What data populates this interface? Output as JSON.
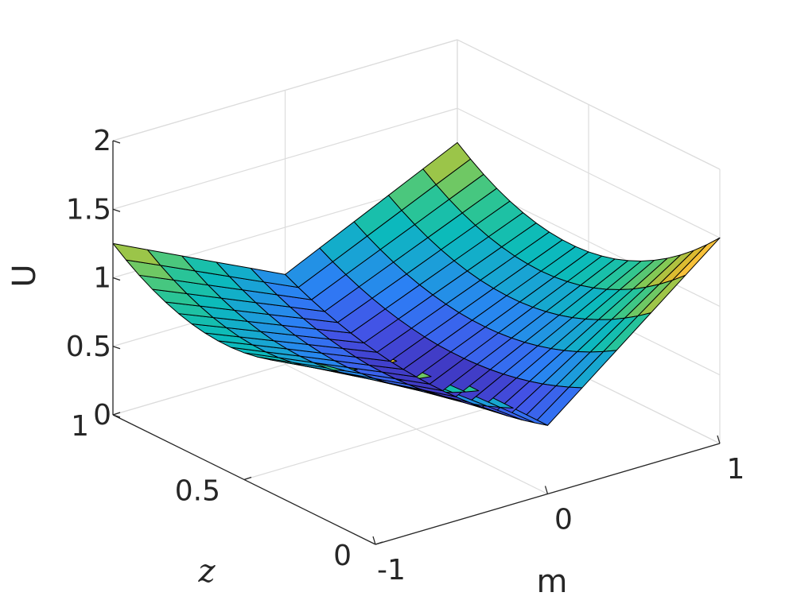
{
  "chart_data": {
    "type": "surface",
    "title": "",
    "xlabel": "m",
    "ylabel": "z",
    "zlabel": "U",
    "x_ticks": [
      "-1",
      "0",
      "1"
    ],
    "y_ticks": [
      "0",
      "0.5",
      "1"
    ],
    "z_ticks": [
      "0",
      "0.5",
      "1",
      "1.5",
      "2"
    ],
    "xlim": [
      -1,
      1
    ],
    "ylim": [
      0,
      1
    ],
    "zlim": [
      0,
      2
    ],
    "grid": true,
    "colormap": "parula",
    "colormap_stops": [
      "#3e26a8",
      "#4353e6",
      "#2c7ff6",
      "#1aa2d6",
      "#0bbbbb",
      "#2fc690",
      "#88c952",
      "#d6ba2f",
      "#fdc23c",
      "#f9f622"
    ],
    "mesh": {
      "m_points": 11,
      "z_points": 21
    },
    "m": [
      -1,
      -0.8,
      -0.6,
      -0.4,
      -0.2,
      0,
      0.2,
      0.4,
      0.6,
      0.8,
      1
    ],
    "z": [
      0,
      0.05,
      0.1,
      0.15,
      0.2,
      0.25,
      0.3,
      0.35,
      0.4,
      0.45,
      0.5,
      0.55,
      0.6,
      0.65,
      0.7,
      0.75,
      0.8,
      0.85,
      0.9,
      0.95,
      1
    ],
    "U": [
      [
        1.5,
        1.402,
        1.313,
        1.233,
        1.162,
        1.1,
        1.047,
        1.003,
        0.968,
        0.942,
        0.925,
        0.917,
        0.918,
        0.928,
        0.947,
        0.975,
        1.012,
        1.058,
        1.113,
        1.177,
        1.25
      ],
      [
        1.3,
        1.216,
        1.14,
        1.072,
        1.011,
        0.959,
        0.914,
        0.878,
        0.849,
        0.829,
        0.816,
        0.811,
        0.815,
        0.826,
        0.846,
        0.873,
        0.909,
        0.952,
        1.004,
        1.064,
        1.131
      ],
      [
        1.1,
        1.03,
        0.967,
        0.91,
        0.861,
        0.818,
        0.782,
        0.753,
        0.731,
        0.716,
        0.707,
        0.706,
        0.712,
        0.724,
        0.744,
        0.771,
        0.805,
        0.846,
        0.894,
        0.95,
        1.012
      ],
      [
        0.9,
        0.844,
        0.793,
        0.749,
        0.71,
        0.677,
        0.65,
        0.628,
        0.612,
        0.602,
        0.598,
        0.6,
        0.608,
        0.623,
        0.643,
        0.669,
        0.701,
        0.74,
        0.785,
        0.836,
        0.893
      ],
      [
        0.7,
        0.658,
        0.62,
        0.587,
        0.559,
        0.536,
        0.517,
        0.503,
        0.494,
        0.489,
        0.49,
        0.494,
        0.505,
        0.521,
        0.541,
        0.567,
        0.598,
        0.634,
        0.676,
        0.722,
        0.775
      ],
      [
        0.5,
        0.472,
        0.447,
        0.426,
        0.409,
        0.395,
        0.385,
        0.378,
        0.375,
        0.376,
        0.381,
        0.389,
        0.401,
        0.419,
        0.44,
        0.465,
        0.495,
        0.528,
        0.566,
        0.609,
        0.656
      ],
      [
        0.7,
        0.658,
        0.62,
        0.587,
        0.559,
        0.536,
        0.517,
        0.503,
        0.494,
        0.489,
        0.49,
        0.494,
        0.505,
        0.521,
        0.541,
        0.567,
        0.598,
        0.634,
        0.676,
        0.722,
        0.775
      ],
      [
        0.9,
        0.844,
        0.793,
        0.749,
        0.71,
        0.677,
        0.65,
        0.628,
        0.612,
        0.602,
        0.598,
        0.6,
        0.608,
        0.623,
        0.643,
        0.669,
        0.701,
        0.74,
        0.785,
        0.836,
        0.893
      ],
      [
        1.1,
        1.03,
        0.967,
        0.91,
        0.861,
        0.818,
        0.782,
        0.753,
        0.731,
        0.716,
        0.707,
        0.706,
        0.712,
        0.724,
        0.744,
        0.771,
        0.805,
        0.846,
        0.894,
        0.95,
        1.012
      ],
      [
        1.3,
        1.216,
        1.14,
        1.072,
        1.011,
        0.959,
        0.914,
        0.878,
        0.849,
        0.829,
        0.816,
        0.811,
        0.815,
        0.826,
        0.846,
        0.873,
        0.909,
        0.952,
        1.004,
        1.064,
        1.131
      ],
      [
        1.5,
        1.402,
        1.313,
        1.233,
        1.162,
        1.1,
        1.047,
        1.003,
        0.968,
        0.942,
        0.925,
        0.917,
        0.918,
        0.928,
        0.947,
        0.975,
        1.012,
        1.058,
        1.113,
        1.177,
        1.25
      ]
    ]
  }
}
